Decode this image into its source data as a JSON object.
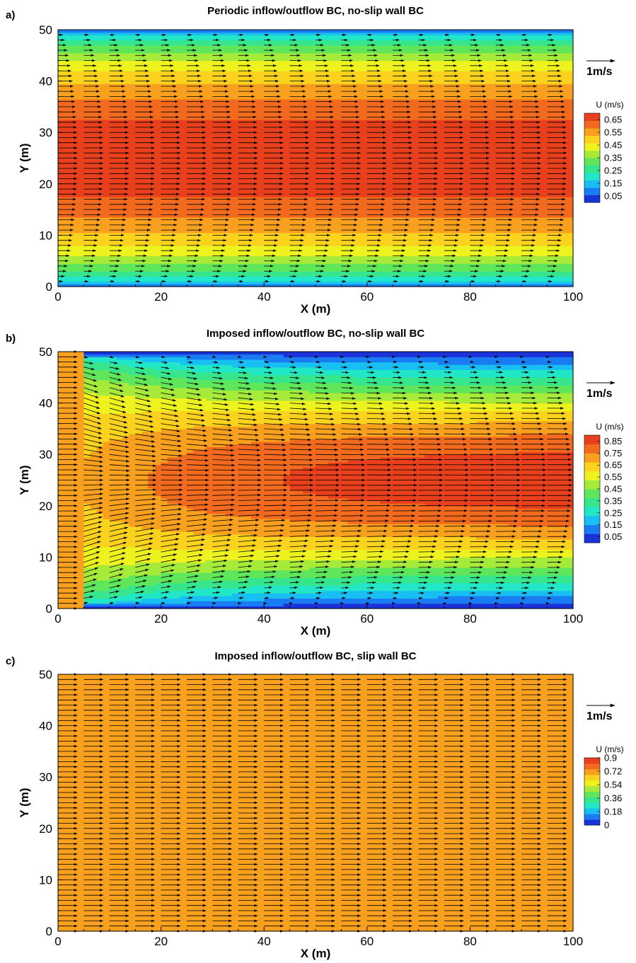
{
  "chart_data": [
    {
      "type": "heatmap",
      "panel_label": "a)",
      "title": "Periodic inflow/outflow BC, no-slip wall BC",
      "xlabel": "X (m)",
      "ylabel": "Y (m)",
      "xlim": [
        0,
        100
      ],
      "ylim": [
        0,
        50
      ],
      "xticks": [
        "0",
        "20",
        "40",
        "60",
        "80",
        "100"
      ],
      "yticks": [
        "0",
        "10",
        "20",
        "30",
        "40",
        "50"
      ],
      "reference_vector_label": "1m/s",
      "colorbar": {
        "title": "U (m/s)",
        "ticks": [
          "0.05",
          "0.15",
          "0.25",
          "0.35",
          "0.45",
          "0.55",
          "0.65"
        ],
        "tick_values": [
          0.05,
          0.15,
          0.25,
          0.35,
          0.45,
          0.55,
          0.65
        ],
        "range": [
          0.0,
          0.7
        ]
      },
      "field": "periodic",
      "u_centerline_max": 0.68,
      "u_wall": 0.02,
      "colors": [
        "#1a33d9",
        "#1a7cf2",
        "#19bff2",
        "#22e6c8",
        "#37e68c",
        "#5fe65a",
        "#a6ea3a",
        "#eef21e",
        "#fbd31e",
        "#f9a01e",
        "#f26a1e",
        "#e8401c"
      ]
    },
    {
      "type": "heatmap",
      "panel_label": "b)",
      "title": "Imposed inflow/outflow BC, no-slip wall BC",
      "xlabel": "X (m)",
      "ylabel": "Y (m)",
      "xlim": [
        0,
        100
      ],
      "ylim": [
        0,
        50
      ],
      "xticks": [
        "0",
        "20",
        "40",
        "60",
        "80",
        "100"
      ],
      "yticks": [
        "0",
        "10",
        "20",
        "30",
        "40",
        "50"
      ],
      "reference_vector_label": "1m/s",
      "colorbar": {
        "title": "U (m/s)",
        "ticks": [
          "0.05",
          "0.15",
          "0.25",
          "0.35",
          "0.45",
          "0.55",
          "0.65",
          "0.75",
          "0.85"
        ],
        "tick_values": [
          0.05,
          0.15,
          0.25,
          0.35,
          0.45,
          0.55,
          0.65,
          0.75,
          0.85
        ],
        "range": [
          0.0,
          0.9
        ]
      },
      "field": "developing",
      "inflow_u": 0.68,
      "u_centerline_max": 0.88,
      "u_wall": 0.02,
      "colors": [
        "#1a33d9",
        "#1a7cf2",
        "#19bff2",
        "#22e6c8",
        "#37e68c",
        "#5fe65a",
        "#a6ea3a",
        "#eef21e",
        "#fbd31e",
        "#f9a01e",
        "#f26a1e",
        "#e8401c"
      ]
    },
    {
      "type": "heatmap",
      "panel_label": "c)",
      "title": "Imposed inflow/outflow BC, slip wall BC",
      "xlabel": "X (m)",
      "ylabel": "Y (m)",
      "xlim": [
        0,
        100
      ],
      "ylim": [
        0,
        50
      ],
      "xticks": [
        "0",
        "20",
        "40",
        "60",
        "80",
        "100"
      ],
      "yticks": [
        "0",
        "10",
        "20",
        "30",
        "40",
        "50"
      ],
      "reference_vector_label": "1m/s",
      "colorbar": {
        "title": "U (m/s)",
        "ticks": [
          "0",
          "0.18",
          "0.36",
          "0.54",
          "0.72",
          "0.9"
        ],
        "tick_values": [
          0,
          0.18,
          0.36,
          0.54,
          0.72,
          0.9
        ],
        "range": [
          0.0,
          0.9
        ]
      },
      "field": "uniform",
      "u_uniform": 0.68,
      "colors": [
        "#1a33d9",
        "#1a7cf2",
        "#19bff2",
        "#22e6c8",
        "#37e68c",
        "#5fe65a",
        "#a6ea3a",
        "#eef21e",
        "#fbd31e",
        "#f9a01e",
        "#f26a1e",
        "#e8401c"
      ]
    }
  ]
}
